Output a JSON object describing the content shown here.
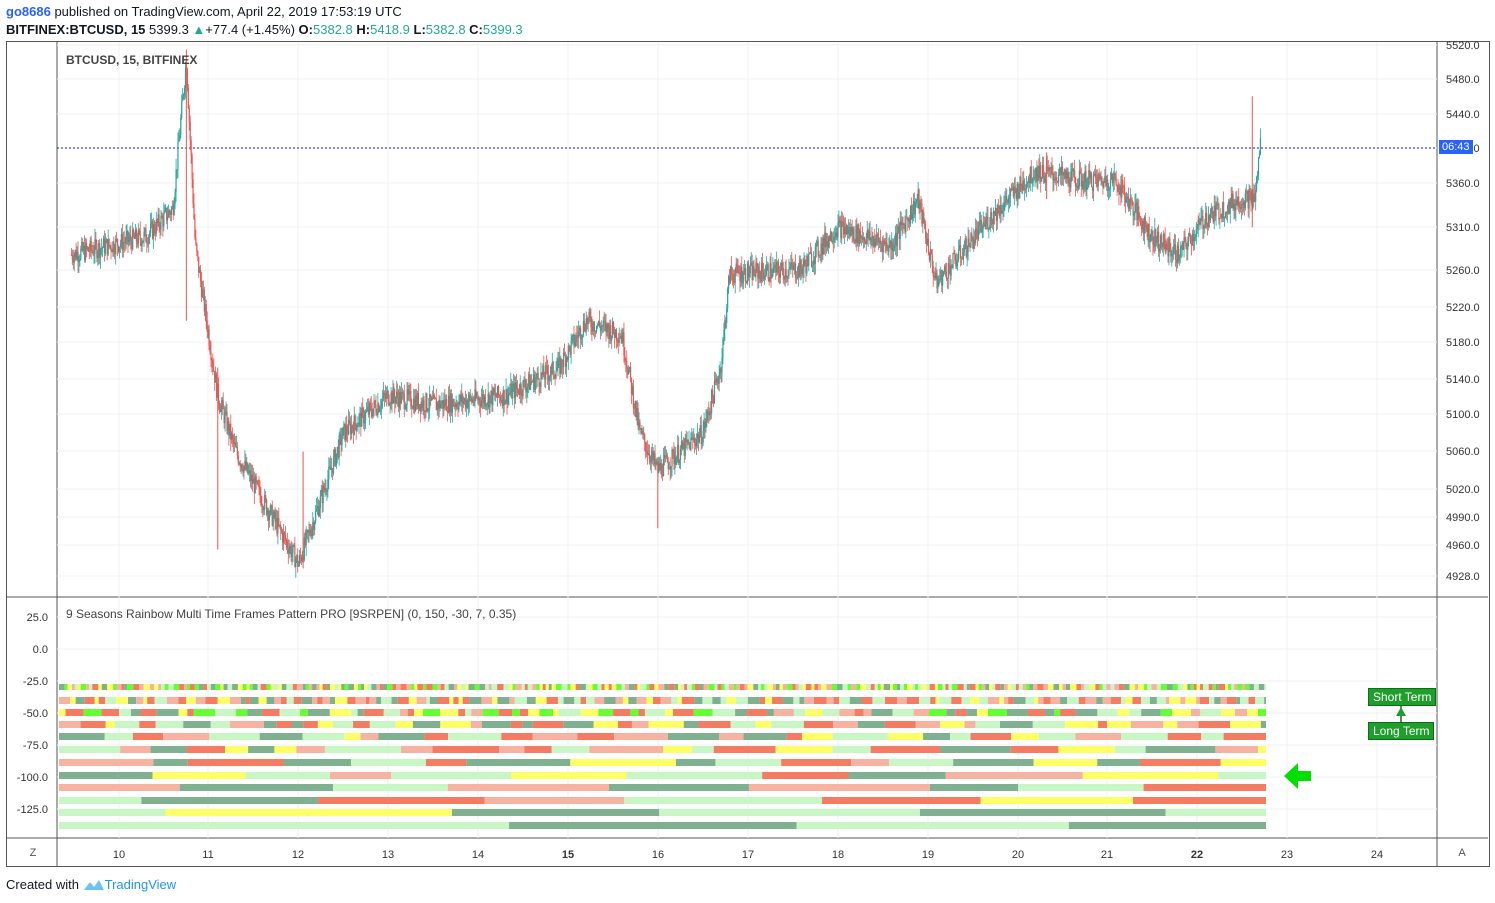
{
  "header": {
    "author": "go8686",
    "published_text": "published on TradingView.com, April 22, 2019 17:53:19 UTC",
    "symbol": "BITFINEX:BTCUSD, 15",
    "last": "5399.3",
    "change": "+77.4 (+1.45%)",
    "open_label": "O:",
    "open": "5382.8",
    "high_label": "H:",
    "high": "5418.9",
    "low_label": "L:",
    "low": "5382.8",
    "close_label": "C:",
    "close": "5399.3"
  },
  "price_pane": {
    "legend": "BTCUSD, 15, BITFINEX",
    "y_ticks": [
      "5520.0",
      "5480.0",
      "5440.0",
      "5410.0",
      "5360.0",
      "5310.0",
      "5260.0",
      "5220.0",
      "5180.0",
      "5140.0",
      "5100.0",
      "5060.0",
      "5020.0",
      "4990.0",
      "4960.0",
      "4928.0"
    ],
    "y_tick_values": [
      5520,
      5480,
      5440,
      5410,
      5360,
      5310,
      5260,
      5220,
      5180,
      5140,
      5100,
      5060,
      5020,
      4990,
      4960,
      4928
    ],
    "countdown": "06:43",
    "current_price": 5399.3,
    "price_line_color": "#1a237e"
  },
  "indicator_pane": {
    "legend": "9 Seasons Rainbow Multi Time Frames Pattern PRO [9SRPEN] (0, 150, -30, 7, 0.35)",
    "y_ticks": [
      "25.0",
      "0.0",
      "-25.0",
      "-50.0",
      "-75.0",
      "-100.0",
      "-125.0"
    ],
    "y_tick_values": [
      25,
      0,
      -25,
      -50,
      -75,
      -100,
      -125
    ],
    "short_term_label": "Short Term",
    "long_term_label": "Long Term",
    "arrow_color": "#00e000",
    "palette": {
      "bull_strong": "#7fb08f",
      "bull_light": "#c8f7c5",
      "bear_strong": "#f47c62",
      "bear_light": "#f7b3a2",
      "neutral": "#ffff66",
      "lime": "#66ff33"
    }
  },
  "x_axis": {
    "labels": [
      "10",
      "11",
      "12",
      "13",
      "14",
      "15",
      "16",
      "17",
      "18",
      "19",
      "20",
      "21",
      "22",
      "23",
      "24"
    ],
    "bold_labels": [
      "15",
      "22"
    ]
  },
  "corners": {
    "left": "Z",
    "right": "A"
  },
  "footer": {
    "created_with": "Created with",
    "brand": "TradingView"
  },
  "chart_data": {
    "type": "candlestick",
    "title": "BTCUSD, 15, BITFINEX",
    "ylim": [
      4915,
      5525
    ],
    "key_points": [
      {
        "x": "09",
        "y": 5260
      },
      {
        "x": "10.3",
        "y": 5290
      },
      {
        "x": "10.6",
        "y": 5320
      },
      {
        "x": "10.75",
        "y": 5480
      },
      {
        "x": "10.85",
        "y": 5280
      },
      {
        "x": "11.1",
        "y": 5120
      },
      {
        "x": "11.3",
        "y": 5060
      },
      {
        "x": "12.0",
        "y": 4940
      },
      {
        "x": "12.5",
        "y": 5080
      },
      {
        "x": "13.0",
        "y": 5120
      },
      {
        "x": "13.5",
        "y": 5110
      },
      {
        "x": "14.3",
        "y": 5120
      },
      {
        "x": "14.9",
        "y": 5150
      },
      {
        "x": "15.2",
        "y": 5200
      },
      {
        "x": "15.6",
        "y": 5185
      },
      {
        "x": "15.8",
        "y": 5080
      },
      {
        "x": "16.0",
        "y": 5040
      },
      {
        "x": "16.5",
        "y": 5080
      },
      {
        "x": "16.7",
        "y": 5150
      },
      {
        "x": "16.8",
        "y": 5250
      },
      {
        "x": "17.6",
        "y": 5255
      },
      {
        "x": "18.0",
        "y": 5300
      },
      {
        "x": "18.6",
        "y": 5280
      },
      {
        "x": "18.9",
        "y": 5330
      },
      {
        "x": "19.1",
        "y": 5240
      },
      {
        "x": "19.7",
        "y": 5310
      },
      {
        "x": "20.2",
        "y": 5360
      },
      {
        "x": "20.7",
        "y": 5350
      },
      {
        "x": "21.1",
        "y": 5350
      },
      {
        "x": "21.5",
        "y": 5290
      },
      {
        "x": "21.8",
        "y": 5270
      },
      {
        "x": "22.1",
        "y": 5310
      },
      {
        "x": "22.5",
        "y": 5330
      },
      {
        "x": "22.65",
        "y": 5330
      },
      {
        "x": "22.72",
        "y": 5399
      }
    ]
  }
}
